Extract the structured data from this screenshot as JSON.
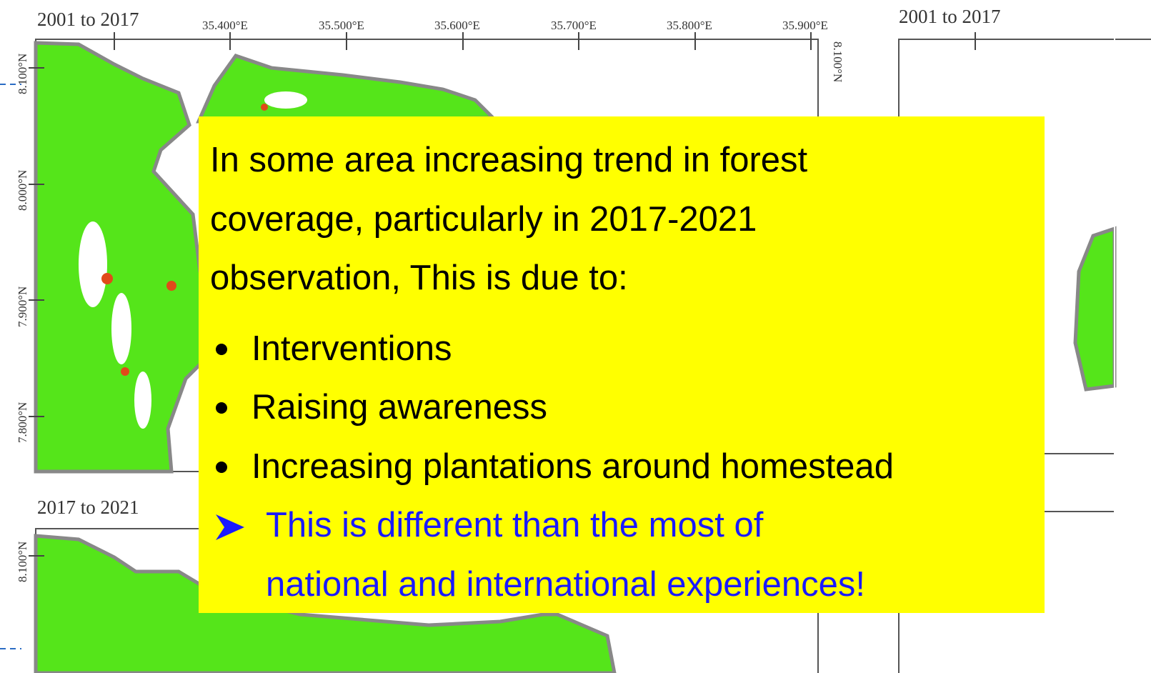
{
  "maps": [
    {
      "period": "2001 to 2017",
      "longitude_labels": [
        "35.400°E",
        "35.500°E",
        "35.600°E",
        "35.700°E",
        "35.800°E",
        "35.900°E"
      ],
      "latitude_labels": [
        "8.100°N",
        "8.000°N",
        "7.900°N",
        "7.800°N"
      ],
      "right_latitude_label": "8.100°N"
    },
    {
      "period": "2017 to 2021",
      "latitude_labels": [
        "8.100°N"
      ]
    },
    {
      "period": "2001 to 2017"
    }
  ],
  "callout": {
    "intro_lines": [
      "In some area increasing trend in forest",
      "coverage, particularly in 2017-2021",
      "observation, This is due to:"
    ],
    "bullets": [
      "Interventions",
      "Raising awareness",
      "Increasing plantations around homestead"
    ],
    "conclusion_lines": [
      "This is different than the most of",
      "national and international experiences!"
    ]
  }
}
